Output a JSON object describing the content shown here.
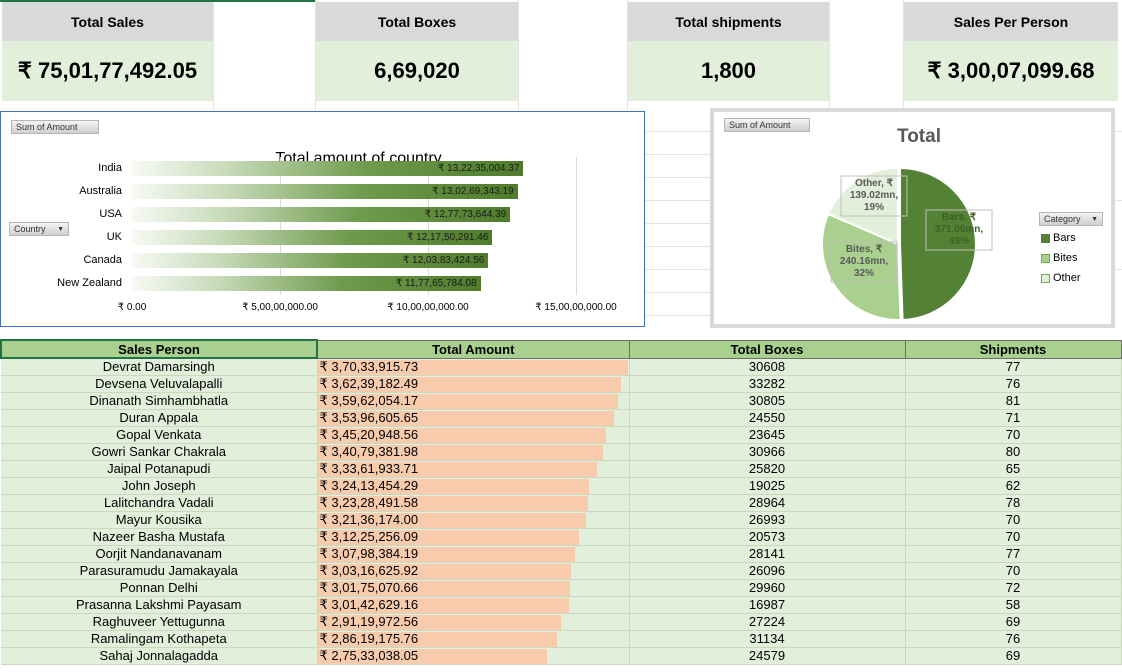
{
  "kpis": [
    {
      "label": "Total Sales",
      "value": "₹ 75,01,77,492.05"
    },
    {
      "label": "Total Boxes",
      "value": "6,69,020"
    },
    {
      "label": "Total shipments",
      "value": "1,800"
    },
    {
      "label": "Sales Per Person",
      "value": "₹ 3,00,07,099.68"
    }
  ],
  "bar_chart": {
    "field_button": "Sum of Amount",
    "axis_button": "Country",
    "chart_data": {
      "type": "bar",
      "title": "Total amount of country",
      "categories": [
        "India",
        "Australia",
        "USA",
        "UK",
        "Canada",
        "New Zealand"
      ],
      "values": [
        132235004.37,
        130269343.19,
        127773644.39,
        121750291.46,
        120383424.56,
        117765784.08
      ],
      "value_labels": [
        "₹ 13,22,35,004.37",
        "₹ 13,02,69,343.19",
        "₹ 12,77,73,644.39",
        "₹ 12,17,50,291.46",
        "₹ 12,03,83,424.56",
        "₹ 11,77,65,784.08"
      ],
      "xlim": [
        0,
        150000000
      ],
      "xticks": [
        0,
        50000000,
        100000000,
        150000000
      ],
      "xtick_labels": [
        "₹ 0.00",
        "₹ 5,00,00,000.00",
        "₹ 10,00,00,000.00",
        "₹ 15,00,00,000.00"
      ],
      "grid": true
    }
  },
  "pie_chart": {
    "field_button": "Sum of Amount",
    "legend_button": "Category",
    "chart_data": {
      "type": "pie",
      "title": "Total",
      "categories": [
        "Bars",
        "Bites",
        "Other"
      ],
      "values": [
        371.0,
        240.16,
        139.02
      ],
      "percents": [
        49,
        32,
        19
      ],
      "slice_labels": [
        [
          "Bars, ₹",
          "371.00mn,",
          "49%"
        ],
        [
          "Bites, ₹",
          "240.16mn,",
          "32%"
        ],
        [
          "Other, ₹",
          "139.02mn,",
          "19%"
        ]
      ],
      "colors": [
        "#548235",
        "#a9d08e",
        "#e2efda"
      ],
      "legend_position": "right"
    }
  },
  "table": {
    "headers": [
      "Sales Person",
      "Total Amount",
      "Total Boxes",
      "Shipments"
    ],
    "amount_max": 37033915.73,
    "rows": [
      {
        "name": "Devrat Damarsingh",
        "amount": "₹ 3,70,33,915.73",
        "amount_num": 37033915.73,
        "boxes": "30608",
        "shipments": "77"
      },
      {
        "name": "Devsena Veluvalapalli",
        "amount": "₹ 3,62,39,182.49",
        "amount_num": 36239182.49,
        "boxes": "33282",
        "shipments": "76"
      },
      {
        "name": "Dinanath Simhambhatla",
        "amount": "₹ 3,59,62,054.17",
        "amount_num": 35962054.17,
        "boxes": "30805",
        "shipments": "81"
      },
      {
        "name": "Duran Appala",
        "amount": "₹ 3,53,96,605.65",
        "amount_num": 35396605.65,
        "boxes": "24550",
        "shipments": "71"
      },
      {
        "name": "Gopal Venkata",
        "amount": "₹ 3,45,20,948.56",
        "amount_num": 34520948.56,
        "boxes": "23645",
        "shipments": "70"
      },
      {
        "name": "Gowri Sankar Chakrala",
        "amount": "₹ 3,40,79,381.98",
        "amount_num": 34079381.98,
        "boxes": "30966",
        "shipments": "80"
      },
      {
        "name": "Jaipal Potanapudi",
        "amount": "₹ 3,33,61,933.71",
        "amount_num": 33361933.71,
        "boxes": "25820",
        "shipments": "65"
      },
      {
        "name": "John Joseph",
        "amount": "₹ 3,24,13,454.29",
        "amount_num": 32413454.29,
        "boxes": "19025",
        "shipments": "62"
      },
      {
        "name": "Lalitchandra Vadali",
        "amount": "₹ 3,23,28,491.58",
        "amount_num": 32328491.58,
        "boxes": "28964",
        "shipments": "78"
      },
      {
        "name": "Mayur Kousika",
        "amount": "₹ 3,21,36,174.00",
        "amount_num": 32136174.0,
        "boxes": "26993",
        "shipments": "70"
      },
      {
        "name": "Nazeer Basha Mustafa",
        "amount": "₹ 3,12,25,256.09",
        "amount_num": 31225256.09,
        "boxes": "20573",
        "shipments": "70"
      },
      {
        "name": "Oorjit Nandanavanam",
        "amount": "₹ 3,07,98,384.19",
        "amount_num": 30798384.19,
        "boxes": "28141",
        "shipments": "77"
      },
      {
        "name": "Parasuramudu Jamakayala",
        "amount": "₹ 3,03,16,625.92",
        "amount_num": 30316625.92,
        "boxes": "26096",
        "shipments": "70"
      },
      {
        "name": "Ponnan Delhi",
        "amount": "₹ 3,01,75,070.66",
        "amount_num": 30175070.66,
        "boxes": "29960",
        "shipments": "72"
      },
      {
        "name": "Prasanna Lakshmi Payasam",
        "amount": "₹ 3,01,42,629.16",
        "amount_num": 30142629.16,
        "boxes": "16987",
        "shipments": "58"
      },
      {
        "name": "Raghuveer Yettugunna",
        "amount": "₹ 2,91,19,972.56",
        "amount_num": 29119972.56,
        "boxes": "27224",
        "shipments": "69"
      },
      {
        "name": "Ramalingam Kothapeta",
        "amount": "₹ 2,86,19,175.76",
        "amount_num": 28619175.76,
        "boxes": "31134",
        "shipments": "76"
      },
      {
        "name": "Sahaj Jonnalagadda",
        "amount": "₹ 2,75,33,038.05",
        "amount_num": 27533038.05,
        "boxes": "24579",
        "shipments": "69"
      }
    ]
  }
}
